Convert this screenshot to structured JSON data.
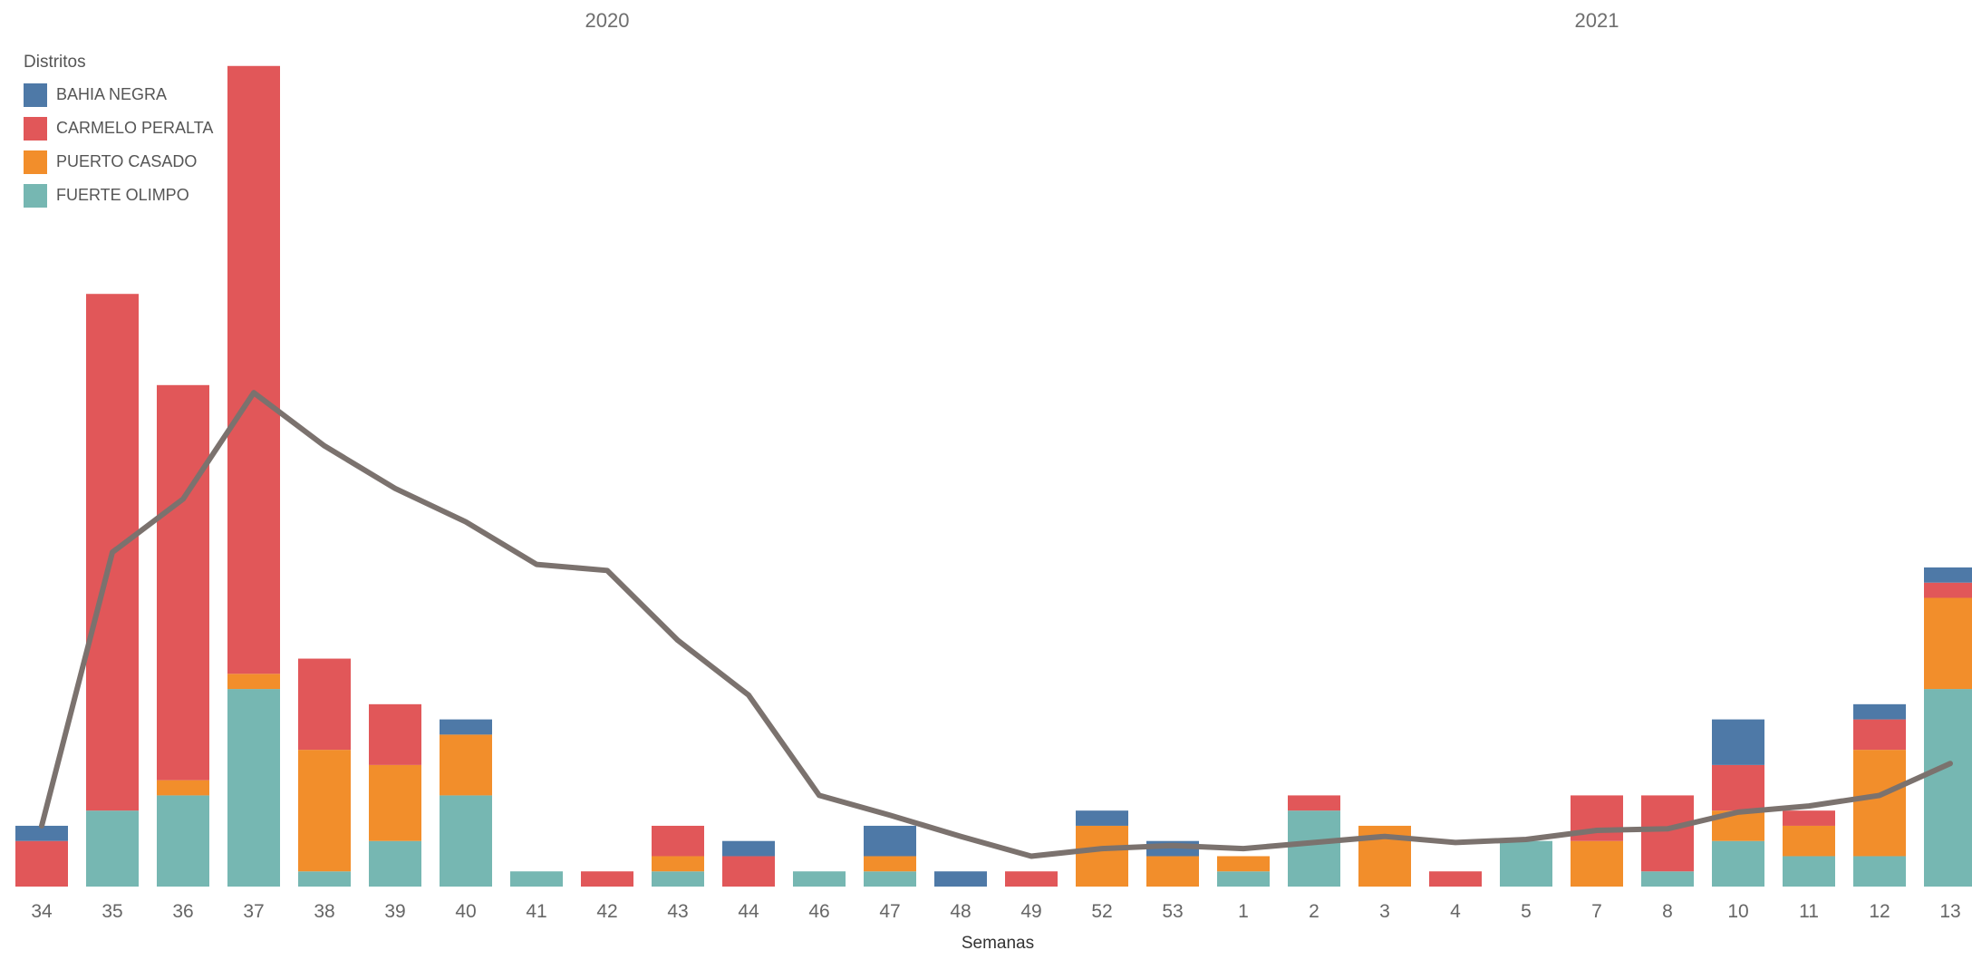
{
  "chart_data": {
    "type": "bar",
    "stacked": true,
    "title": "",
    "xlabel": "Semanas",
    "ylabel": "",
    "ylim": [
      0,
      55
    ],
    "grid": false,
    "legend_position": "top-left",
    "legend_title": "Distritos",
    "year_labels": [
      {
        "label": "2020",
        "start_index": 0
      },
      {
        "label": "2021",
        "start_index": 17
      }
    ],
    "categories": [
      "34",
      "35",
      "36",
      "37",
      "38",
      "39",
      "40",
      "41",
      "42",
      "43",
      "44",
      "46",
      "47",
      "48",
      "49",
      "52",
      "53",
      "1",
      "2",
      "3",
      "4",
      "5",
      "7",
      "8",
      "10",
      "11",
      "12",
      "13"
    ],
    "series": [
      {
        "name": "FUERTE OLIMPO",
        "color": "#76b7b2",
        "values": [
          0,
          5,
          6,
          13,
          1,
          3,
          6,
          1,
          0,
          1,
          0,
          1,
          1,
          0,
          0,
          0,
          0,
          1,
          5,
          0,
          0,
          3,
          0,
          1,
          3,
          2,
          2,
          13
        ]
      },
      {
        "name": "PUERTO CASADO",
        "color": "#f28e2b",
        "values": [
          0,
          0,
          1,
          1,
          8,
          5,
          4,
          0,
          0,
          1,
          0,
          0,
          1,
          0,
          0,
          4,
          2,
          1,
          0,
          4,
          0,
          0,
          3,
          0,
          2,
          2,
          7,
          6
        ]
      },
      {
        "name": "CARMELO PERALTA",
        "color": "#e15759",
        "values": [
          3,
          34,
          26,
          40,
          6,
          4,
          0,
          0,
          1,
          2,
          2,
          0,
          0,
          0,
          1,
          0,
          0,
          0,
          1,
          0,
          1,
          0,
          3,
          5,
          3,
          1,
          2,
          1
        ]
      },
      {
        "name": "BAHIA NEGRA",
        "color": "#4e79a7",
        "values": [
          1,
          0,
          0,
          0,
          0,
          0,
          1,
          0,
          0,
          0,
          1,
          0,
          2,
          1,
          0,
          1,
          1,
          0,
          0,
          0,
          0,
          0,
          0,
          0,
          3,
          0,
          1,
          1
        ]
      }
    ],
    "line": {
      "color": "#7b726e",
      "values": [
        4,
        22,
        25.5,
        32.5,
        29,
        26.2,
        24,
        21.2,
        20.8,
        16.2,
        12.6,
        6,
        4.7,
        3.3,
        2,
        2.5,
        2.7,
        2.5,
        2.9,
        3.3,
        2.9,
        3.1,
        3.7,
        3.8,
        4.9,
        5.3,
        6,
        8.1
      ]
    }
  }
}
